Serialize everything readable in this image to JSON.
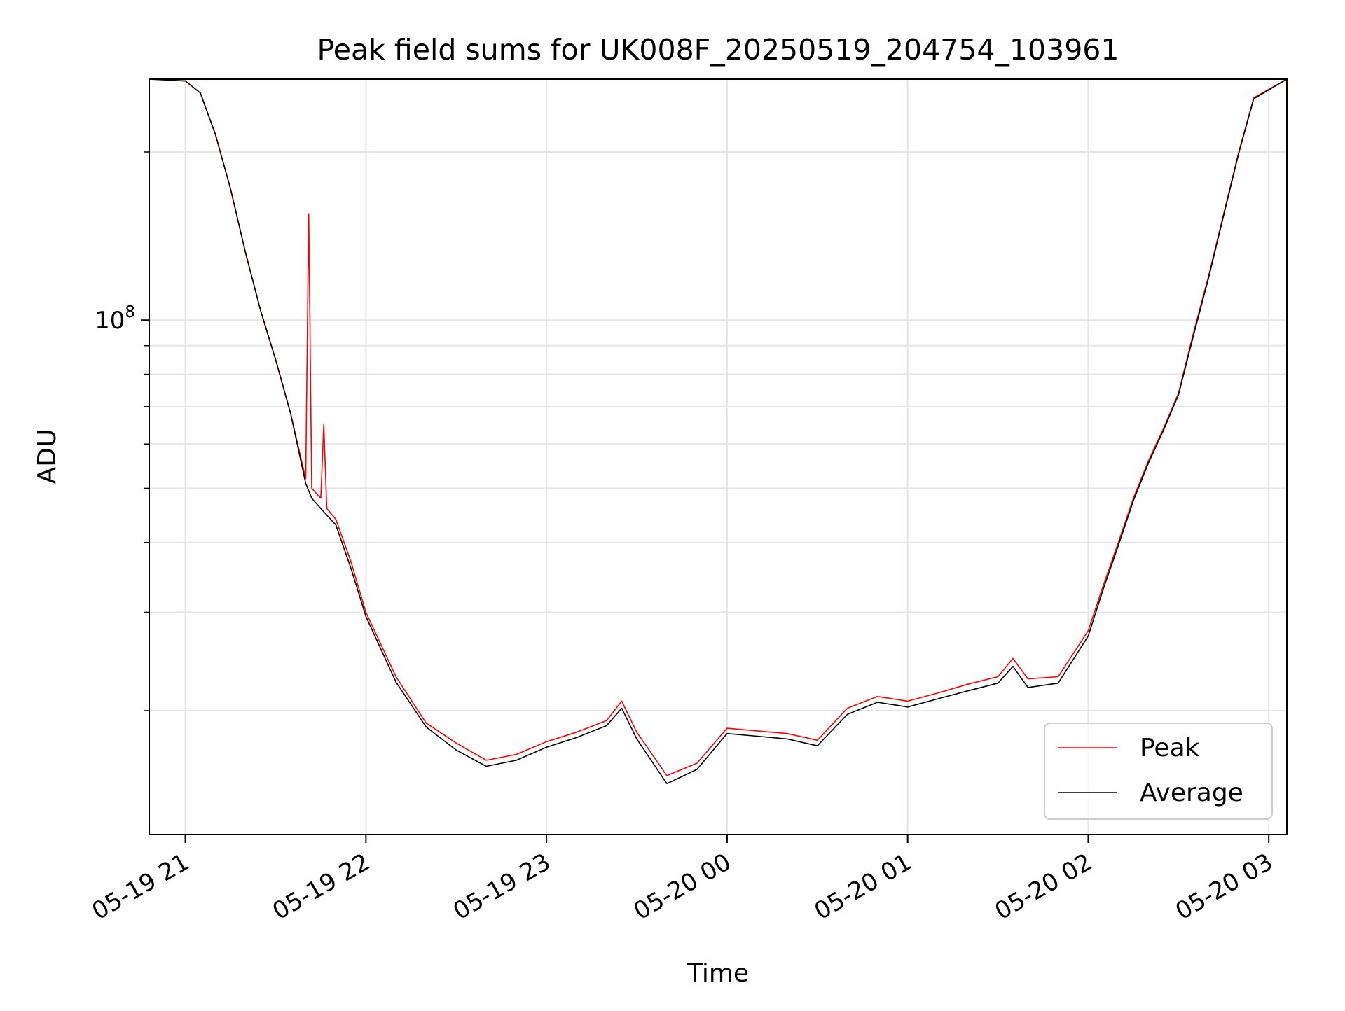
{
  "chart_data": {
    "type": "line",
    "title": "Peak field sums for UK008F_20250519_204754_103961",
    "xlabel": "Time",
    "ylabel": "ADU",
    "yscale": "log",
    "grid": true,
    "legend_position": "lower-right",
    "xlim": [
      "2025-05-19 20:48",
      "2025-05-20 03:06"
    ],
    "ylim": [
      12000000,
      270000000
    ],
    "x_ticks": [
      "05-19 21",
      "05-19 22",
      "05-19 23",
      "05-20 00",
      "05-20 01",
      "05-20 02",
      "05-20 03"
    ],
    "y_ticks": [
      {
        "value": 100000000,
        "base": "10",
        "exponent": "8"
      }
    ],
    "series": [
      {
        "name": "Peak",
        "color": "#ff0000",
        "x": [
          "2025-05-19 20:48",
          "2025-05-19 21:00",
          "2025-05-19 21:05",
          "2025-05-19 21:10",
          "2025-05-19 21:15",
          "2025-05-19 21:20",
          "2025-05-19 21:25",
          "2025-05-19 21:30",
          "2025-05-19 21:35",
          "2025-05-19 21:40",
          "2025-05-19 21:41",
          "2025-05-19 21:42",
          "2025-05-19 21:45",
          "2025-05-19 21:46",
          "2025-05-19 21:47",
          "2025-05-19 21:50",
          "2025-05-19 21:55",
          "2025-05-19 22:00",
          "2025-05-19 22:10",
          "2025-05-19 22:20",
          "2025-05-19 22:30",
          "2025-05-19 22:40",
          "2025-05-19 22:50",
          "2025-05-19 23:00",
          "2025-05-19 23:10",
          "2025-05-19 23:20",
          "2025-05-19 23:25",
          "2025-05-19 23:30",
          "2025-05-19 23:40",
          "2025-05-19 23:50",
          "2025-05-20 00:00",
          "2025-05-20 00:10",
          "2025-05-20 00:20",
          "2025-05-20 00:30",
          "2025-05-20 00:40",
          "2025-05-20 00:50",
          "2025-05-20 01:00",
          "2025-05-20 01:10",
          "2025-05-20 01:20",
          "2025-05-20 01:30",
          "2025-05-20 01:35",
          "2025-05-20 01:40",
          "2025-05-20 01:50",
          "2025-05-20 02:00",
          "2025-05-20 02:05",
          "2025-05-20 02:10",
          "2025-05-20 02:15",
          "2025-05-20 02:20",
          "2025-05-20 02:25",
          "2025-05-20 02:30",
          "2025-05-20 02:35",
          "2025-05-20 02:40",
          "2025-05-20 02:45",
          "2025-05-20 02:50",
          "2025-05-20 02:55",
          "2025-05-20 03:06"
        ],
        "y": [
          270000000,
          268000000,
          255000000,
          215000000,
          172000000,
          132000000,
          104000000,
          85000000,
          68000000,
          52000000,
          155000000,
          50000000,
          48000000,
          65000000,
          46000000,
          44000000,
          37000000,
          30000000,
          23000000,
          19000000,
          17500000,
          16300000,
          16700000,
          17600000,
          18300000,
          19200000,
          20800000,
          18300000,
          15300000,
          16100000,
          18600000,
          18400000,
          18200000,
          17700000,
          20200000,
          21200000,
          20800000,
          21500000,
          22300000,
          23000000,
          24800000,
          22800000,
          23000000,
          27800000,
          33500000,
          40000000,
          48000000,
          56000000,
          64000000,
          74000000,
          95000000,
          120000000,
          155000000,
          200000000,
          250000000,
          270000000
        ]
      },
      {
        "name": "Average",
        "color": "#000000",
        "x": [
          "2025-05-19 20:48",
          "2025-05-19 21:00",
          "2025-05-19 21:05",
          "2025-05-19 21:10",
          "2025-05-19 21:15",
          "2025-05-19 21:20",
          "2025-05-19 21:25",
          "2025-05-19 21:30",
          "2025-05-19 21:35",
          "2025-05-19 21:40",
          "2025-05-19 21:42",
          "2025-05-19 21:45",
          "2025-05-19 21:50",
          "2025-05-19 21:55",
          "2025-05-19 22:00",
          "2025-05-19 22:10",
          "2025-05-19 22:20",
          "2025-05-19 22:30",
          "2025-05-19 22:40",
          "2025-05-19 22:50",
          "2025-05-19 23:00",
          "2025-05-19 23:10",
          "2025-05-19 23:20",
          "2025-05-19 23:25",
          "2025-05-19 23:30",
          "2025-05-19 23:40",
          "2025-05-19 23:50",
          "2025-05-20 00:00",
          "2025-05-20 00:10",
          "2025-05-20 00:20",
          "2025-05-20 00:30",
          "2025-05-20 00:40",
          "2025-05-20 00:50",
          "2025-05-20 01:00",
          "2025-05-20 01:10",
          "2025-05-20 01:20",
          "2025-05-20 01:30",
          "2025-05-20 01:35",
          "2025-05-20 01:40",
          "2025-05-20 01:50",
          "2025-05-20 02:00",
          "2025-05-20 02:05",
          "2025-05-20 02:10",
          "2025-05-20 02:15",
          "2025-05-20 02:20",
          "2025-05-20 02:25",
          "2025-05-20 02:30",
          "2025-05-20 02:35",
          "2025-05-20 02:40",
          "2025-05-20 02:45",
          "2025-05-20 02:50",
          "2025-05-20 02:55",
          "2025-05-20 03:06"
        ],
        "y": [
          270000000,
          268000000,
          255000000,
          215000000,
          172000000,
          132000000,
          104000000,
          85000000,
          68000000,
          51000000,
          48000000,
          46000000,
          43000000,
          36000000,
          29500000,
          22500000,
          18700000,
          17000000,
          15900000,
          16300000,
          17200000,
          17900000,
          18800000,
          20200000,
          17800000,
          14800000,
          15700000,
          18200000,
          18000000,
          17800000,
          17300000,
          19700000,
          20700000,
          20300000,
          21000000,
          21700000,
          22400000,
          24000000,
          22000000,
          22400000,
          27200000,
          33000000,
          39500000,
          47500000,
          55500000,
          63500000,
          73500000,
          94000000,
          119000000,
          154000000,
          199000000,
          249000000,
          270000000
        ]
      }
    ]
  }
}
